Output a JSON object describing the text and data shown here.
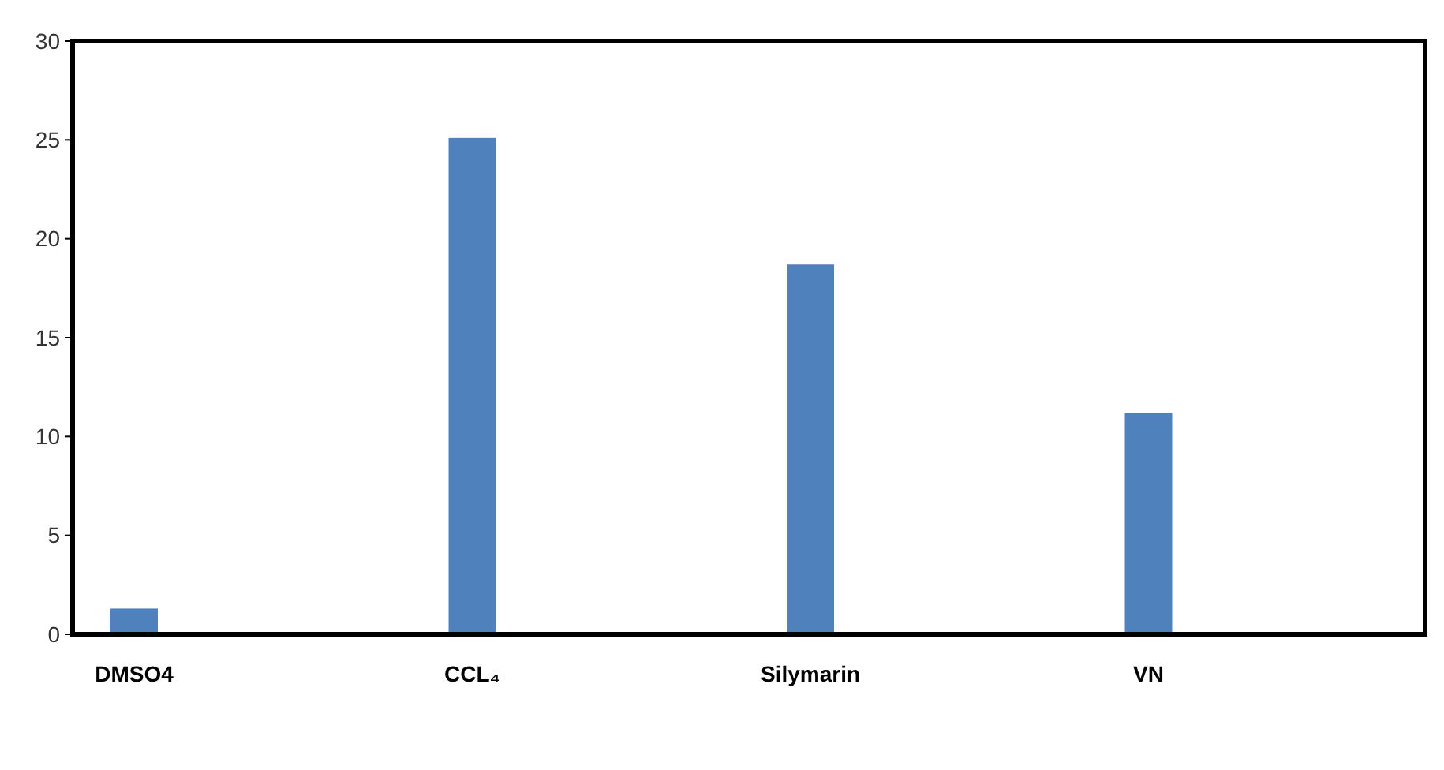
{
  "chart_data": {
    "type": "bar",
    "categories": [
      "DMSO4",
      "CCL₄",
      "Silymarin",
      "VN"
    ],
    "values": [
      1.3,
      25.1,
      18.7,
      11.2
    ],
    "color": "#4f81bd",
    "ylim": [
      0,
      30
    ],
    "yticks": [
      0,
      5,
      10,
      15,
      20,
      25,
      30
    ],
    "grid": false
  }
}
